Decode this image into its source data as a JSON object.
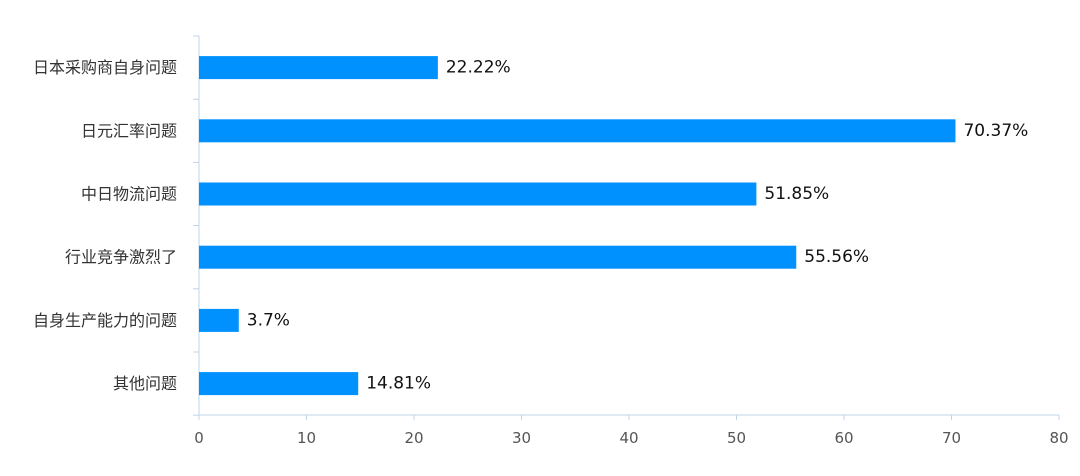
{
  "chart_data": {
    "type": "bar",
    "orientation": "horizontal",
    "categories": [
      "日本采购商自身问题",
      "日元汇率问题",
      "中日物流问题",
      "行业竞争激烈了",
      "自身生产能力的问题",
      "其他问题"
    ],
    "values": [
      22.22,
      70.37,
      51.85,
      55.56,
      3.7,
      14.81
    ],
    "value_labels": [
      "22.22%",
      "70.37%",
      "51.85%",
      "55.56%",
      "3.7%",
      "14.81%"
    ],
    "title": "",
    "xlabel": "",
    "ylabel": "",
    "xlim": [
      0,
      80
    ],
    "x_ticks": [
      0,
      10,
      20,
      30,
      40,
      50,
      60,
      70,
      80
    ],
    "grid": false,
    "legend": "none",
    "colors": {
      "bar": "#0091FF",
      "axis": "#BFD4EA"
    }
  }
}
